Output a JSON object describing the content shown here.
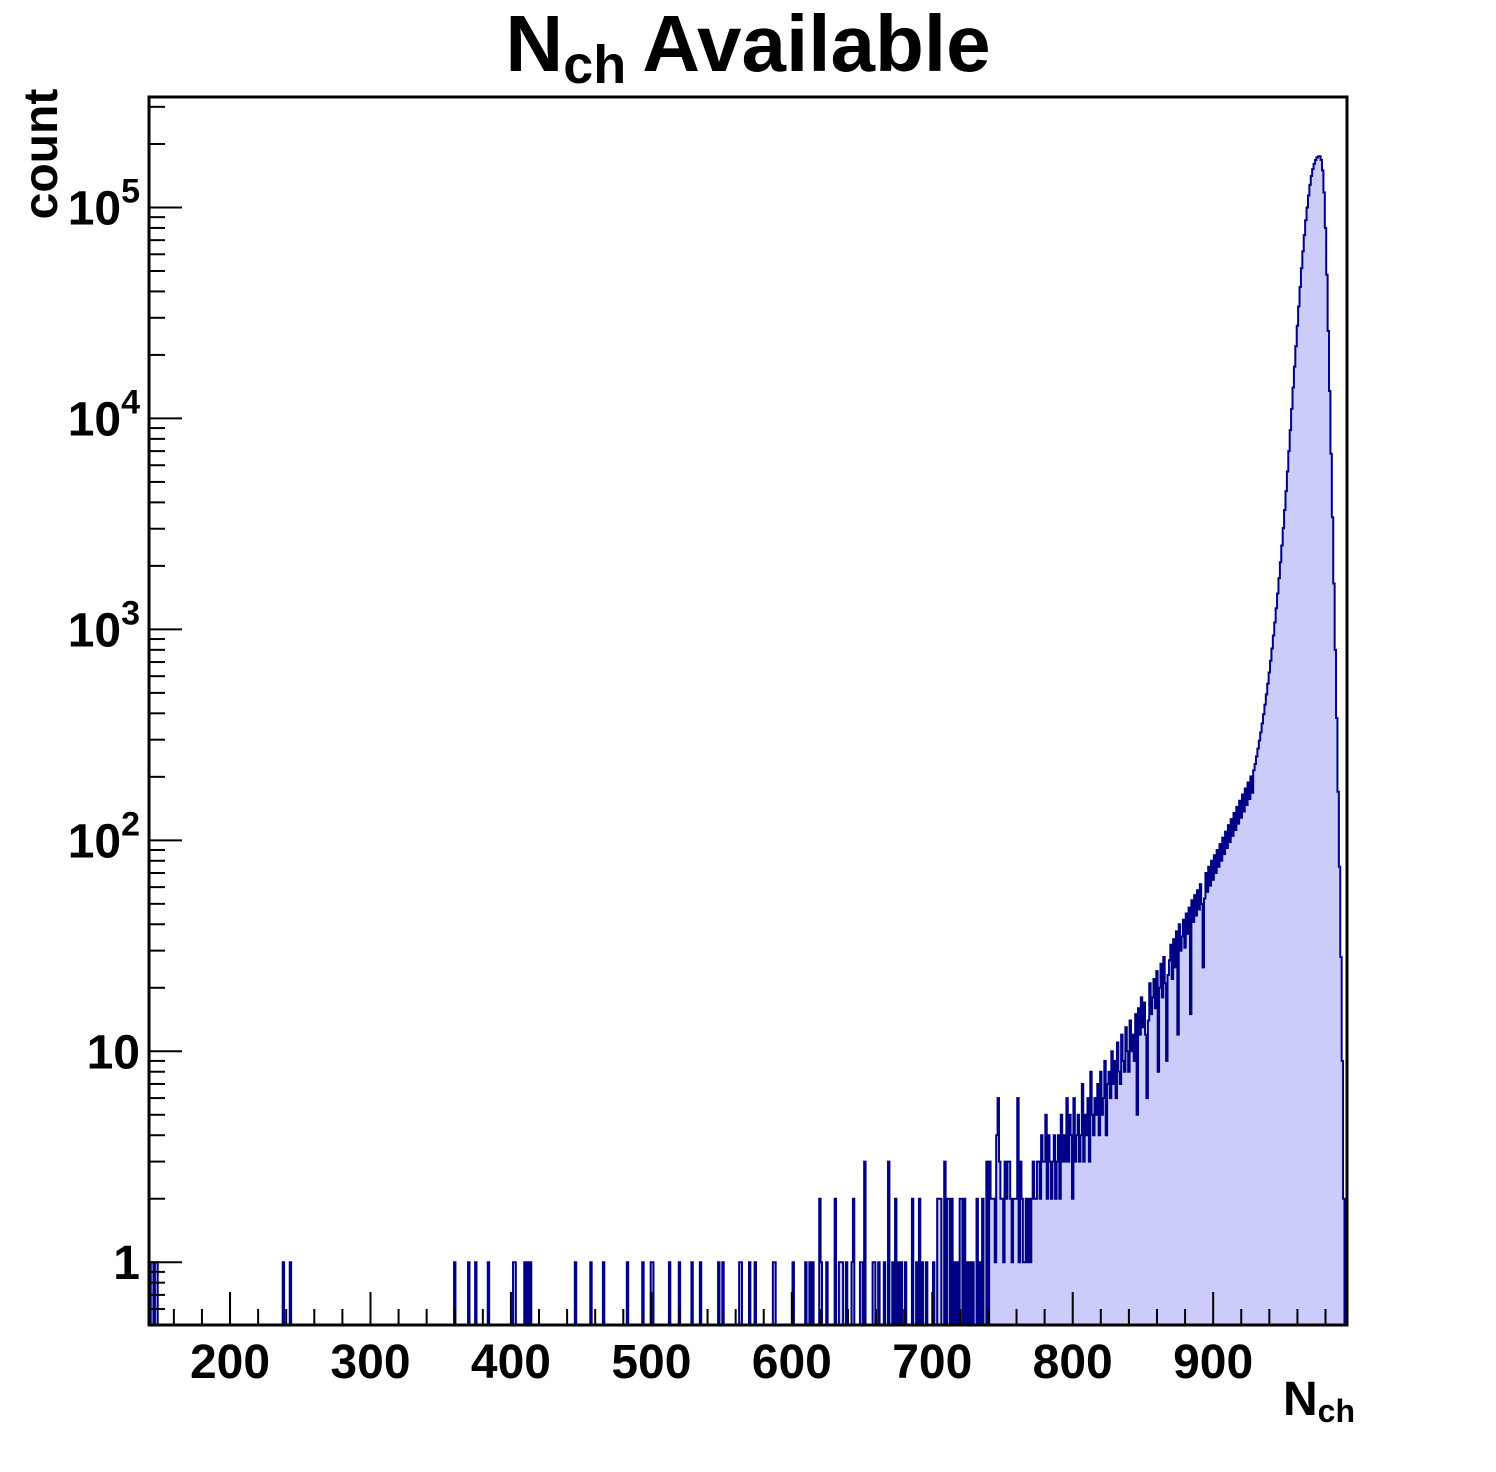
{
  "title": {
    "prefix": "N",
    "subscript": "ch",
    "suffix": "Available"
  },
  "y_axis": {
    "title": "count",
    "scale": "log",
    "tick_values": [
      1,
      10,
      100,
      1000,
      10000,
      100000
    ],
    "tick_labels": [
      {
        "base": "1",
        "exp": ""
      },
      {
        "base": "10",
        "exp": ""
      },
      {
        "base": "10",
        "exp": "2"
      },
      {
        "base": "10",
        "exp": "3"
      },
      {
        "base": "10",
        "exp": "4"
      },
      {
        "base": "10",
        "exp": "5"
      }
    ],
    "range": [
      0.504,
      334000
    ]
  },
  "x_axis": {
    "title_prefix": "N",
    "title_subscript": "ch",
    "tick_values": [
      200,
      300,
      400,
      500,
      600,
      700,
      800,
      900
    ],
    "tick_labels": [
      "200",
      "300",
      "400",
      "500",
      "600",
      "700",
      "800",
      "900"
    ],
    "minor_step": 20,
    "range": [
      142.3,
      995.3
    ]
  },
  "style": {
    "fill_color": "#ccccfa",
    "line_color": "#000087",
    "frame_color": "#000000",
    "text_color": "#000000",
    "background": "#ffffff"
  },
  "chart_data": {
    "type": "bar",
    "title": "N_ch Available",
    "xlabel": "N_ch",
    "ylabel": "count",
    "y_scale": "log",
    "x_range": [
      142.3,
      995.3
    ],
    "y_range": [
      0.504,
      334000
    ],
    "bin_width": 1,
    "peak": {
      "x": 976,
      "count": 175000
    },
    "sparse_bins": [
      [
        144,
        1
      ],
      [
        145,
        1
      ],
      [
        147,
        1
      ],
      [
        148,
        1
      ],
      [
        238,
        1
      ],
      [
        243,
        1
      ],
      [
        360,
        1
      ],
      [
        370,
        1
      ],
      [
        375,
        1
      ],
      [
        384,
        1
      ],
      [
        402,
        1
      ],
      [
        403,
        1
      ],
      [
        410,
        1
      ],
      [
        412,
        1
      ],
      [
        414,
        1
      ],
      [
        446,
        1
      ],
      [
        457,
        1
      ],
      [
        466,
        1
      ],
      [
        483,
        1
      ],
      [
        494,
        1
      ],
      [
        500,
        1
      ],
      [
        501,
        1
      ],
      [
        513,
        1
      ],
      [
        520,
        1
      ],
      [
        529,
        1
      ],
      [
        535,
        1
      ],
      [
        548,
        1
      ],
      [
        551,
        1
      ],
      [
        563,
        1
      ],
      [
        564,
        1
      ],
      [
        570,
        1
      ],
      [
        574,
        1
      ],
      [
        587,
        1
      ],
      [
        588,
        1
      ],
      [
        601,
        1
      ],
      [
        610,
        1
      ],
      [
        613,
        1
      ],
      [
        615,
        1
      ],
      [
        620,
        2
      ],
      [
        621,
        1
      ],
      [
        625,
        1
      ],
      [
        631,
        2
      ],
      [
        634,
        1
      ],
      [
        635,
        1
      ],
      [
        636,
        1
      ],
      [
        639,
        1
      ],
      [
        643,
        1
      ],
      [
        644,
        2
      ],
      [
        649,
        1
      ],
      [
        650,
        1
      ],
      [
        652,
        3
      ],
      [
        658,
        1
      ],
      [
        659,
        1
      ],
      [
        662,
        1
      ],
      [
        666,
        1
      ],
      [
        669,
        3
      ],
      [
        672,
        1
      ],
      [
        674,
        2
      ],
      [
        676,
        1
      ],
      [
        678,
        1
      ],
      [
        681,
        1
      ],
      [
        686,
        2
      ],
      [
        689,
        1
      ],
      [
        691,
        2
      ],
      [
        693,
        1
      ],
      [
        696,
        1
      ],
      [
        701,
        1
      ],
      [
        704,
        2
      ],
      [
        705,
        2
      ],
      [
        706,
        2
      ],
      [
        709,
        3
      ],
      [
        711,
        2
      ],
      [
        712,
        2
      ],
      [
        714,
        2
      ],
      [
        716,
        1
      ],
      [
        718,
        1
      ],
      [
        720,
        2
      ],
      [
        721,
        2
      ],
      [
        723,
        2
      ],
      [
        725,
        1
      ],
      [
        727,
        1
      ],
      [
        729,
        1
      ],
      [
        732,
        2
      ],
      [
        734,
        1
      ],
      [
        736,
        2
      ],
      [
        739,
        3
      ],
      [
        741,
        3
      ],
      [
        742,
        2
      ],
      [
        743,
        2
      ]
    ],
    "dense_start": 744,
    "dense_counts": [
      2,
      1,
      4,
      6,
      3,
      2,
      2,
      1,
      3,
      2,
      3,
      3,
      2,
      1,
      2,
      2,
      2,
      6,
      1,
      3,
      2,
      1,
      1,
      2,
      1,
      2,
      1,
      2,
      3,
      2,
      2,
      3,
      3,
      2,
      4,
      3,
      3,
      5,
      2,
      4,
      3,
      2,
      3,
      4,
      2,
      3,
      4,
      2,
      5,
      3,
      4,
      3,
      6,
      3,
      5,
      4,
      2,
      6,
      3,
      4,
      5,
      3,
      4,
      7,
      3,
      5,
      4,
      6,
      3,
      8,
      5,
      4,
      6,
      5,
      7,
      4,
      8,
      5,
      6,
      9,
      4,
      7,
      8,
      6,
      10,
      7,
      9,
      6,
      11,
      8,
      7,
      12,
      9,
      8,
      13,
      10,
      8,
      14,
      10,
      12,
      9,
      15,
      5,
      16,
      12,
      18,
      13,
      17,
      12,
      6,
      14,
      21,
      15,
      18,
      22,
      16,
      24,
      8,
      20,
      26,
      18,
      28,
      21,
      9,
      23,
      27,
      32,
      22,
      34,
      25,
      37,
      12,
      40,
      30,
      35,
      42,
      31,
      45,
      36,
      48,
      15,
      52,
      41,
      55,
      44,
      58,
      47,
      62,
      50,
      25,
      53,
      70,
      57,
      75,
      61,
      80,
      65,
      85,
      70,
      90,
      75,
      96,
      80,
      103,
      86,
      110,
      92,
      118,
      98,
      126,
      105,
      135,
      112,
      144,
      120,
      154,
      128,
      165,
      137,
      176,
      147,
      188,
      157,
      201,
      168,
      215,
      230,
      250,
      272,
      297,
      325,
      358,
      396,
      440,
      492,
      553,
      625,
      710,
      812,
      935,
      1080,
      1260,
      1480,
      1750,
      2080,
      2500,
      3020,
      3680,
      4520,
      5600,
      7000,
      8800,
      11100,
      14000,
      17600,
      22000,
      27500,
      34000,
      42000,
      51500,
      62000,
      74000,
      87000,
      100000,
      114000,
      128000,
      141000,
      152000,
      161000,
      168000,
      172500,
      174500,
      175000,
      168000,
      150000,
      118000,
      80000,
      48000,
      26000,
      13500,
      6800,
      3400,
      1650,
      800,
      380,
      170,
      75,
      28,
      9,
      2
    ]
  }
}
